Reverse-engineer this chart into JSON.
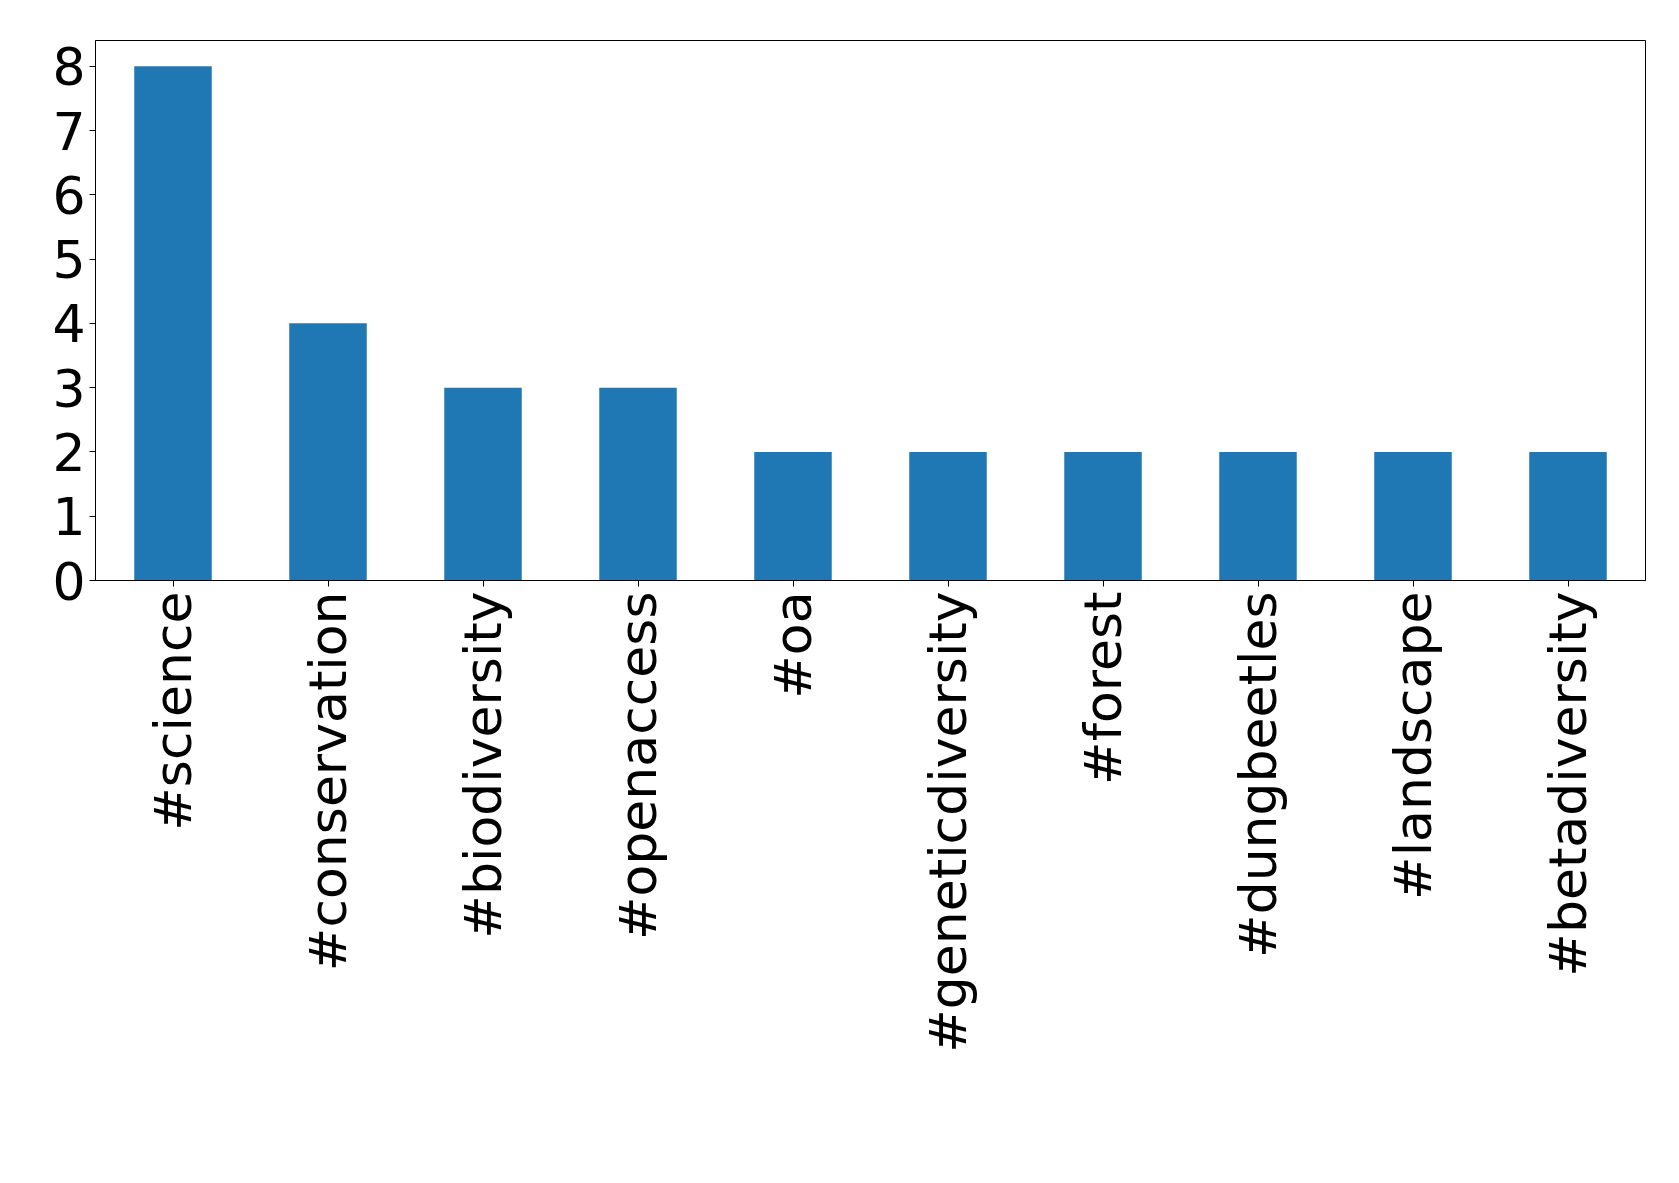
{
  "chart_data": {
    "type": "bar",
    "categories": [
      "#science",
      "#conservation",
      "#biodiversity",
      "#openaccess",
      "#oa",
      "#geneticdiversity",
      "#forest",
      "#dungbeetles",
      "#landscape",
      "#betadiversity"
    ],
    "values": [
      8,
      4,
      3,
      3,
      2,
      2,
      2,
      2,
      2,
      2
    ],
    "color": "#1f77b4",
    "ylim": [
      0,
      8.4
    ],
    "yticks": [
      0,
      1,
      2,
      3,
      4,
      5,
      6,
      7,
      8
    ]
  }
}
